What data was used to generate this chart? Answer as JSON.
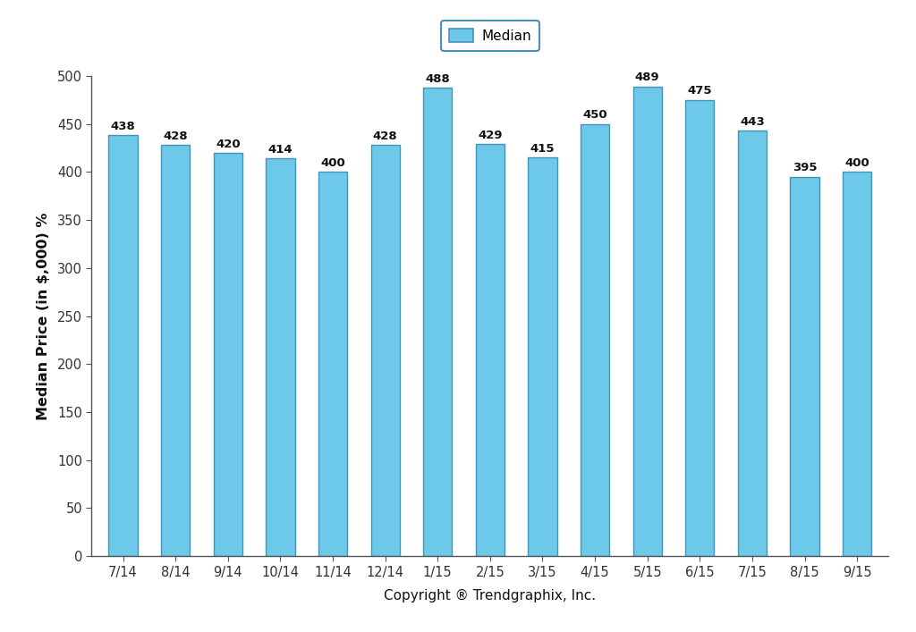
{
  "categories": [
    "7/14",
    "8/14",
    "9/14",
    "10/14",
    "11/14",
    "12/14",
    "1/15",
    "2/15",
    "3/15",
    "4/15",
    "5/15",
    "6/15",
    "7/15",
    "8/15",
    "9/15"
  ],
  "values": [
    438,
    428,
    420,
    414,
    400,
    428,
    488,
    429,
    415,
    450,
    489,
    475,
    443,
    395,
    400
  ],
  "bar_color": "#6CC9EA",
  "bar_edgecolor": "#4A90B8",
  "ylim": [
    0,
    500
  ],
  "yticks": [
    0,
    50,
    100,
    150,
    200,
    250,
    300,
    350,
    400,
    450,
    500
  ],
  "ylabel": "Median Price (in $,000) %",
  "xlabel": "Copyright ® Trendgraphix, Inc.",
  "legend_label": "Median",
  "background_color": "#ffffff",
  "bar_label_fontsize": 9.5,
  "axis_label_fontsize": 11.5,
  "tick_fontsize": 10.5,
  "legend_fontsize": 11,
  "bar_width": 0.55
}
